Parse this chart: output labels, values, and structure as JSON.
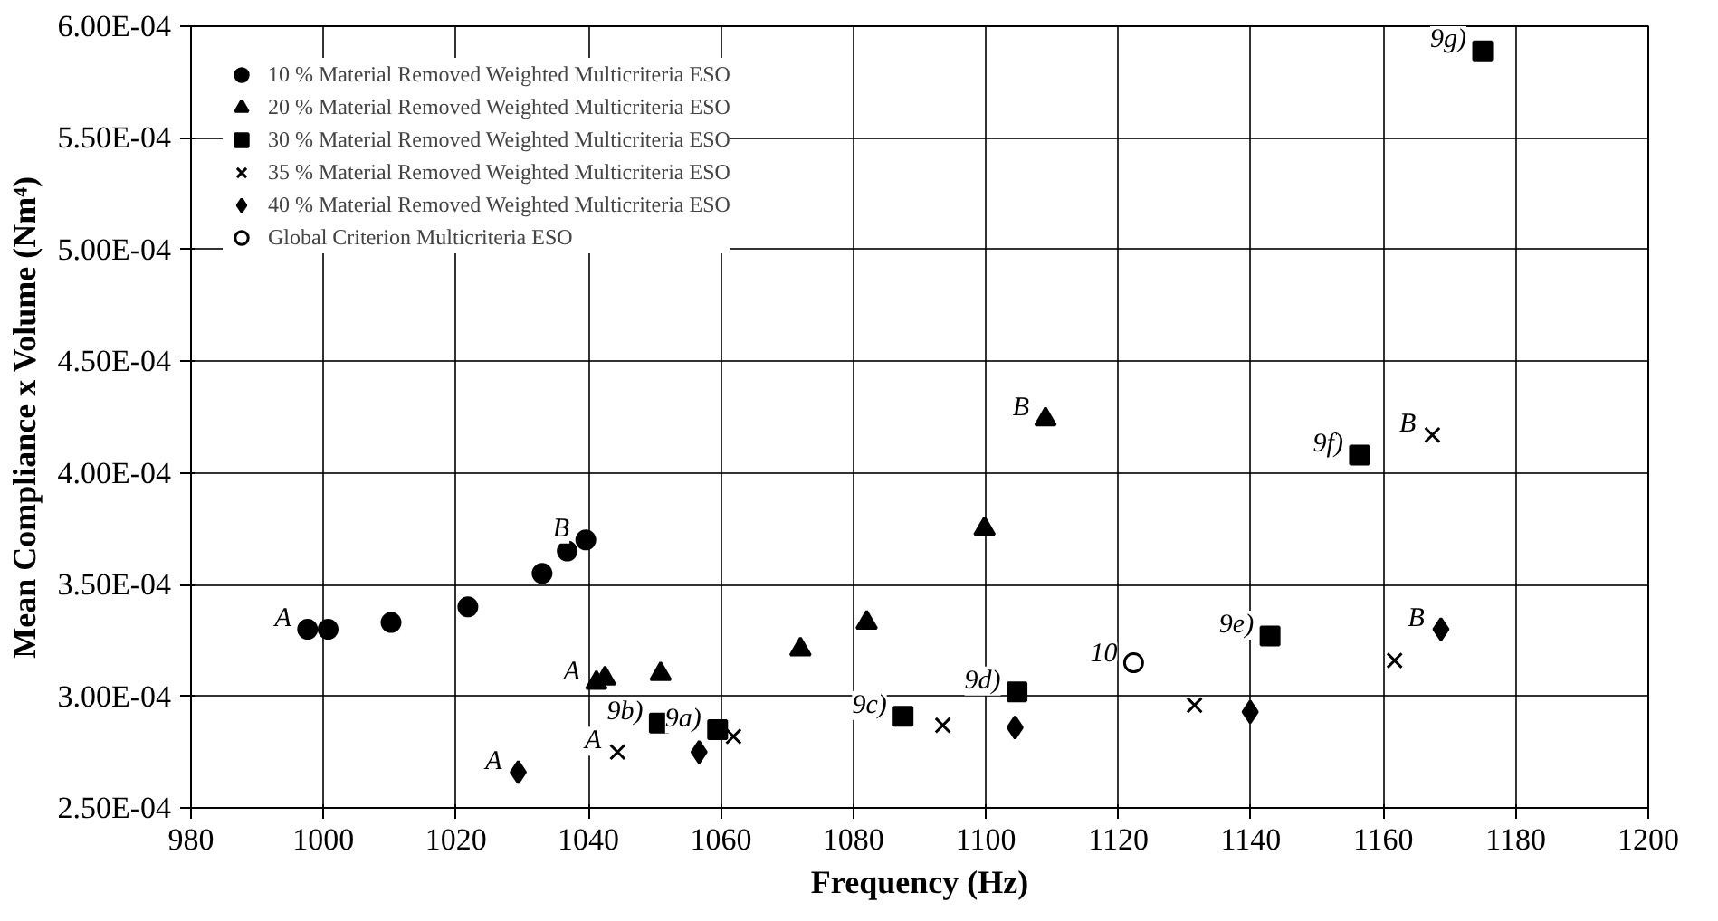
{
  "chart_data": {
    "type": "scatter",
    "xlabel": "Frequency (Hz)",
    "ylabel": "Mean Compliance x Volume (Nm⁴)",
    "xlim": [
      980,
      1200
    ],
    "xticks": [
      980,
      1000,
      1020,
      1040,
      1060,
      1080,
      1100,
      1120,
      1140,
      1160,
      1180,
      1200
    ],
    "ylim": [
      0.00025,
      0.0006
    ],
    "yticks": [
      {
        "value": 0.00025,
        "label": "2.50E-04"
      },
      {
        "value": 0.0003,
        "label": "3.00E-04"
      },
      {
        "value": 0.00035,
        "label": "3.50E-04"
      },
      {
        "value": 0.0004,
        "label": "4.00E-04"
      },
      {
        "value": 0.00045,
        "label": "4.50E-04"
      },
      {
        "value": 0.0005,
        "label": "5.00E-04"
      },
      {
        "value": 0.00055,
        "label": "5.50E-04"
      },
      {
        "value": 0.0006,
        "label": "6.00E-04"
      }
    ],
    "grid": true,
    "legend": "top left",
    "series": [
      {
        "name": "10 % Material Removed Weighted Multicriteria ESO",
        "color": "#000000",
        "marker": "circle",
        "x": [
          997.6,
          1000.7,
          1010.2,
          1021.8,
          1033.0,
          1036.8,
          1039.6
        ],
        "values": [
          0.00033,
          0.00033,
          0.000333,
          0.00034,
          0.000355,
          0.000365,
          0.00037
        ]
      },
      {
        "name": "20 % Material Removed Weighted Multicriteria ESO",
        "color": "#000000",
        "marker": "triangle",
        "x": [
          1041.2,
          1042.5,
          1050.9,
          1072.0,
          1082.0,
          1099.8,
          1109.0
        ],
        "values": [
          0.000306,
          0.000308,
          0.00031,
          0.000321,
          0.000333,
          0.000375,
          0.000424
        ]
      },
      {
        "name": "30 % Material Removed Weighted Multicriteria ESO",
        "color": "#000000",
        "marker": "square",
        "x": [
          1050.7,
          1059.5,
          1087.5,
          1104.7,
          1142.9,
          1156.4,
          1175.0
        ],
        "values": [
          0.000288,
          0.000285,
          0.000291,
          0.000302,
          0.000327,
          0.000408,
          0.000589
        ]
      },
      {
        "name": "35 % Material Removed Weighted Multicriteria ESO",
        "color": "#000000",
        "marker": "cross",
        "x": [
          1044.4,
          1061.9,
          1093.5,
          1131.5,
          1161.7,
          1167.4
        ],
        "values": [
          0.000275,
          0.000282,
          0.000287,
          0.000296,
          0.000316,
          0.000417
        ]
      },
      {
        "name": "40 % Material Removed Weighted Multicriteria ESO",
        "color": "#000000",
        "marker": "diamond",
        "x": [
          1029.4,
          1056.7,
          1104.4,
          1139.9,
          1168.7
        ],
        "values": [
          0.000266,
          0.000275,
          0.000286,
          0.000293,
          0.00033
        ]
      },
      {
        "name": "Global Criterion Multicriteria ESO",
        "color": "#000000",
        "marker": "circle_open",
        "x": [
          1122.3
        ],
        "values": [
          0.000315
        ]
      }
    ],
    "annotations": [
      {
        "text": "A",
        "x": 997.6,
        "y": 0.00033
      },
      {
        "text": "B",
        "x": 1039.6,
        "y": 0.00037
      },
      {
        "text": "A",
        "x": 1041.2,
        "y": 0.000306
      },
      {
        "text": "B",
        "x": 1109.0,
        "y": 0.000424
      },
      {
        "text": "A",
        "x": 1044.4,
        "y": 0.000275
      },
      {
        "text": "B",
        "x": 1167.4,
        "y": 0.000417
      },
      {
        "text": "A",
        "x": 1029.4,
        "y": 0.000266
      },
      {
        "text": "B",
        "x": 1168.7,
        "y": 0.00033
      },
      {
        "text": "9a)",
        "x": 1059.5,
        "y": 0.000285
      },
      {
        "text": "9b)",
        "x": 1050.7,
        "y": 0.000288
      },
      {
        "text": "9c)",
        "x": 1087.5,
        "y": 0.000291
      },
      {
        "text": "9d)",
        "x": 1104.7,
        "y": 0.000302
      },
      {
        "text": "9e)",
        "x": 1142.9,
        "y": 0.000327
      },
      {
        "text": "9f)",
        "x": 1156.4,
        "y": 0.000408
      },
      {
        "text": "9g)",
        "x": 1175.0,
        "y": 0.000589
      },
      {
        "text": "10",
        "x": 1122.3,
        "y": 0.000315
      }
    ]
  }
}
